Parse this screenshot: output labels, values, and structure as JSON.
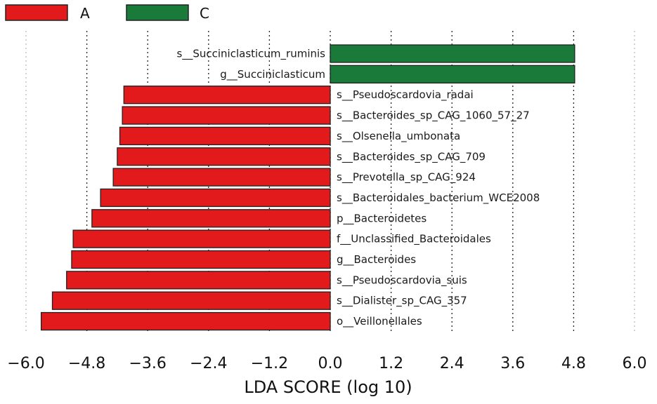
{
  "chart_data": {
    "type": "bar",
    "orientation": "horizontal",
    "xlabel": "LDA SCORE (log 10)",
    "xlim": [
      -6.0,
      6.0
    ],
    "xticks": [
      "−6.0",
      "−4.8",
      "−3.6",
      "−2.4",
      "−1.2",
      "0.0",
      "1.2",
      "2.4",
      "3.6",
      "4.8",
      "6.0"
    ],
    "xtick_values": [
      -6.0,
      -4.8,
      -3.6,
      -2.4,
      -1.2,
      0.0,
      1.2,
      2.4,
      3.6,
      4.8,
      6.0
    ],
    "grid": "vertical dotted",
    "legend": [
      {
        "name": "A",
        "color": "#e31a1c"
      },
      {
        "name": "C",
        "color": "#1a7a3a"
      }
    ],
    "categories": [
      "s__Succiniclasticum_ruminis",
      "g__Succiniclasticum",
      "s__Pseudoscardovia_radai",
      "s__Bacteroides_sp_CAG_1060_57_27",
      "s__Olsenella_umbonata",
      "s__Bacteroides_sp_CAG_709",
      "s__Prevotella_sp_CAG_924",
      "s__Bacteroidales_bacterium_WCE2008",
      "p__Bacteroidetes",
      "f__Unclassified_Bacteroidales",
      "g__Bacteroides",
      "s__Pseudoscardovia_suis",
      "s__Dialister_sp_CAG_357",
      "o__Veillonellales"
    ],
    "values": [
      4.82,
      4.82,
      -4.07,
      -4.1,
      -4.15,
      -4.2,
      -4.28,
      -4.53,
      -4.7,
      -5.07,
      -5.1,
      -5.2,
      -5.48,
      -5.7
    ],
    "groups": [
      "C",
      "C",
      "A",
      "A",
      "A",
      "A",
      "A",
      "A",
      "A",
      "A",
      "A",
      "A",
      "A",
      "A"
    ]
  }
}
